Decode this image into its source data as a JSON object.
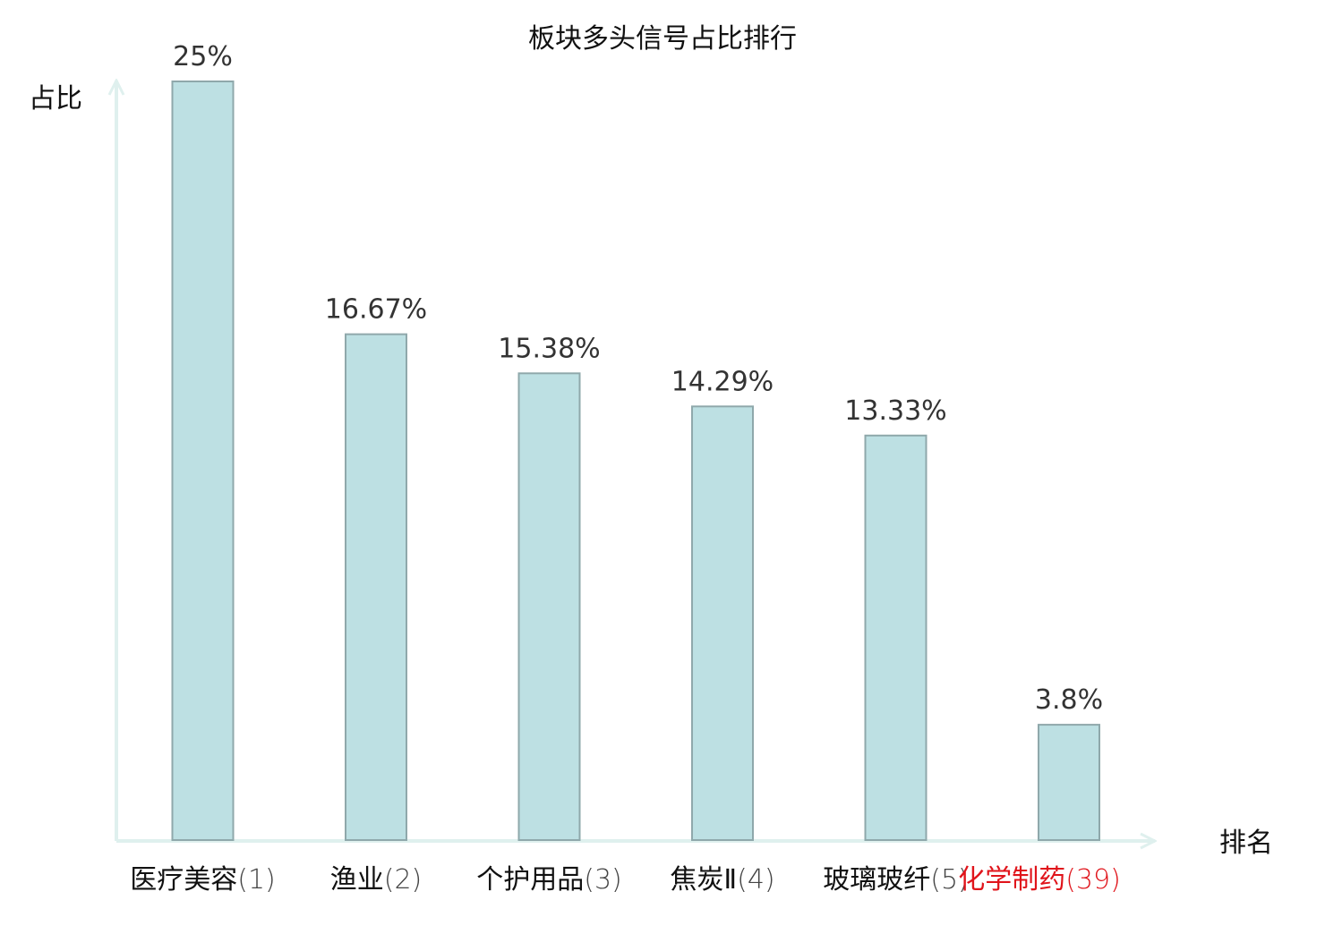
{
  "chart_data": {
    "type": "bar",
    "title": "板块多头信号占比排行",
    "ylabel": "占比",
    "xlabel": "排名",
    "categories": [
      {
        "name": "医疗美容",
        "rank": "(1)"
      },
      {
        "name": "渔业",
        "rank": "(2)"
      },
      {
        "name": "个护用品",
        "rank": "(3)"
      },
      {
        "name": "焦炭Ⅱ",
        "rank": "(4)"
      },
      {
        "name": "玻璃玻纤",
        "rank": "(5)"
      },
      {
        "name": "化学制药",
        "rank": "(39)"
      }
    ],
    "values": [
      25,
      16.67,
      15.38,
      14.29,
      13.33,
      3.8
    ],
    "value_labels": [
      "25%",
      "16.67%",
      "15.38%",
      "14.29%",
      "13.33%",
      "3.8%"
    ],
    "highlight": [
      false,
      false,
      false,
      false,
      false,
      true
    ],
    "ylim": [
      0,
      25
    ],
    "grid": false,
    "colors": {
      "bar_fill": "#bde0e3",
      "bar_stroke": "#8fa8ab",
      "axis": "#dff0ee",
      "label_default": "#111111",
      "rank_default": "#444444",
      "highlight": "#e0141b",
      "value_text": "#333333"
    }
  }
}
